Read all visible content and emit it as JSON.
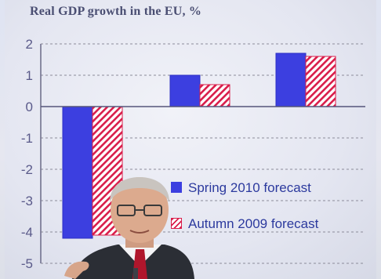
{
  "chart_data": {
    "type": "bar",
    "title": "Real GDP growth in the EU, %",
    "categories": [
      "",
      "",
      ""
    ],
    "series": [
      {
        "name": "Spring 2010 forecast",
        "values": [
          -4.2,
          1.0,
          1.7
        ],
        "style": "solid",
        "color": "#3c3fe0"
      },
      {
        "name": "Autumn 2009 forecast",
        "values": [
          -4.1,
          0.7,
          1.6
        ],
        "style": "hatched",
        "color": "#d91d4a"
      }
    ],
    "ylim": [
      -5,
      2
    ],
    "yticks": [
      "2",
      "1",
      "0",
      "-1",
      "-2",
      "-3",
      "-4",
      "-5"
    ],
    "grid": true,
    "legend": "lower-right"
  },
  "colors": {
    "title": "#4a4e72",
    "axis_text": "#5a5a8a",
    "legend_text": "#2c3a9e"
  },
  "scene": {
    "foreground": "presenter-photo"
  }
}
